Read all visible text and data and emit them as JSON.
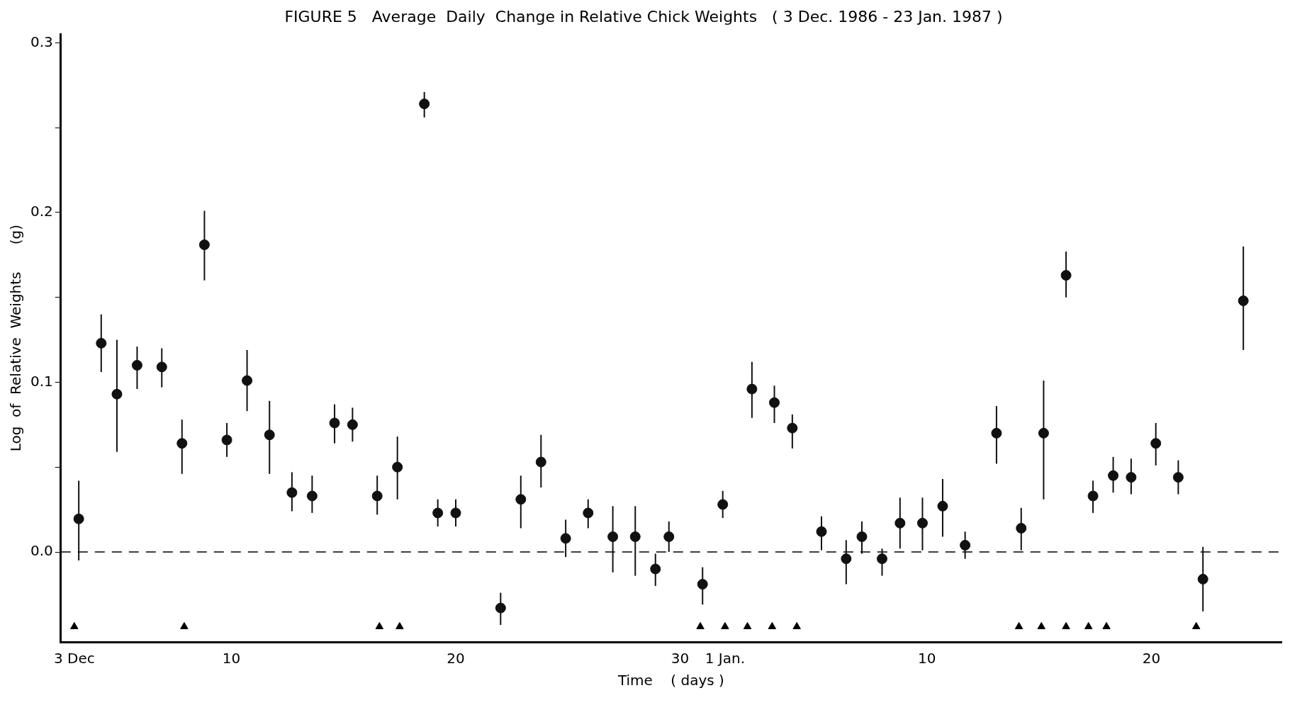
{
  "chart_data": {
    "type": "scatter",
    "title": "FIGURE 5   Average  Daily  Change in Relative Chick Weights   ( 3 Dec. 1986 - 23 Jan. 1987 )",
    "xlabel": "Time    ( days )",
    "ylabel": "Log  of  Relative  Weights      (g)",
    "xlim": [
      "1986-12-02T09:36",
      "1987-01-25T19:12"
    ],
    "xticks": [
      {
        "value": "1986-12-03",
        "label": "3 Dec"
      },
      {
        "value": "1986-12-10",
        "label": "10"
      },
      {
        "value": "1986-12-20",
        "label": "20"
      },
      {
        "value": "1986-12-30",
        "label": "30"
      },
      {
        "value": "1987-01-01",
        "label": "1 Jan."
      },
      {
        "value": "1987-01-10",
        "label": "10"
      },
      {
        "value": "1987-01-20",
        "label": "20"
      }
    ],
    "ylim": [
      -0.053,
      0.305
    ],
    "yticks": [
      {
        "value": 0,
        "label": "0.0"
      },
      {
        "value": 0.05,
        "label": null
      },
      0.1,
      {
        "value": 0.15,
        "label": null
      },
      0.2,
      {
        "value": 0.25,
        "label": null
      },
      0.3
    ],
    "grid": false,
    "legend": false,
    "marker": "circle",
    "ref_lines": [
      {
        "axis": "y",
        "value": 0,
        "line_style": "dashed",
        "color": "#000000"
      }
    ],
    "series": [
      {
        "color": "#111111",
        "x": [
          "1986-12-03T04:48",
          "1986-12-04T04:48",
          "1986-12-04T21:36",
          "1986-12-05T19:12",
          "1986-12-06T21:36",
          "1986-12-07T19:12",
          "1986-12-08T19:12",
          "1986-12-09T19:12",
          "1986-12-10T16:48",
          "1986-12-11T16:48",
          "1986-12-12T16:48",
          "1986-12-13T14:24",
          "1986-12-14T14:24",
          "1986-12-15T09:36",
          "1986-12-16T12:00",
          "1986-12-17T09:36",
          "1986-12-18T14:24",
          "1986-12-19T04:48",
          "1986-12-20T00:00",
          "1986-12-22T00:00",
          "1986-12-22T21:36",
          "1986-12-23T19:12",
          "1986-12-24T21:36",
          "1986-12-25T21:36",
          "1986-12-27T00:00",
          "1986-12-28T00:00",
          "1986-12-28T21:36",
          "1986-12-29T12:00",
          "1986-12-31T00:00",
          "1986-12-31T21:36",
          "1987-01-02T04:48",
          "1987-01-03T04:48",
          "1987-01-04T00:00",
          "1987-01-05T07:12",
          "1987-01-06T09:36",
          "1987-01-07T02:24",
          "1987-01-08T00:00",
          "1987-01-08T19:12",
          "1987-01-09T19:12",
          "1987-01-10T16:48",
          "1987-01-11T16:48",
          "1987-01-13T02:24",
          "1987-01-14T04:48",
          "1987-01-15T04:48",
          "1987-01-16T04:48",
          "1987-01-17T09:36",
          "1987-01-18T07:12",
          "1987-01-19T02:24",
          "1987-01-20T04:48",
          "1987-01-21T04:48",
          "1987-01-22T07:12",
          "1987-01-24T02:24"
        ],
        "values": [
          0.0195,
          0.123,
          0.093,
          0.11,
          0.109,
          0.064,
          0.181,
          0.066,
          0.101,
          0.069,
          0.035,
          0.033,
          0.076,
          0.075,
          0.033,
          0.05,
          0.264,
          0.023,
          0.023,
          -0.033,
          0.031,
          0.053,
          0.008,
          0.023,
          0.009,
          0.009,
          -0.01,
          0.009,
          -0.019,
          0.028,
          0.096,
          0.088,
          0.073,
          0.012,
          -0.004,
          0.009,
          -0.004,
          0.017,
          0.017,
          0.027,
          0.004,
          0.07,
          0.014,
          0.07,
          0.163,
          0.033,
          0.045,
          0.044,
          0.064,
          0.044,
          -0.016,
          0.148
        ],
        "errors": [
          [
            -0.005,
            0.042
          ],
          [
            0.106,
            0.14
          ],
          [
            0.059,
            0.125
          ],
          [
            0.096,
            0.121
          ],
          [
            0.097,
            0.12
          ],
          [
            0.046,
            0.078
          ],
          [
            0.16,
            0.201
          ],
          [
            0.056,
            0.076
          ],
          [
            0.083,
            0.119
          ],
          [
            0.046,
            0.089
          ],
          [
            0.024,
            0.047
          ],
          [
            0.023,
            0.045
          ],
          [
            0.064,
            0.087
          ],
          [
            0.065,
            0.085
          ],
          [
            0.022,
            0.045
          ],
          [
            0.031,
            0.068
          ],
          [
            0.256,
            0.271
          ],
          [
            0.015,
            0.031
          ],
          [
            0.015,
            0.031
          ],
          [
            -0.043,
            -0.024
          ],
          [
            0.014,
            0.045
          ],
          [
            0.038,
            0.069
          ],
          [
            -0.003,
            0.019
          ],
          [
            0.014,
            0.031
          ],
          [
            -0.012,
            0.027
          ],
          [
            -0.014,
            0.027
          ],
          [
            -0.02,
            -0.001
          ],
          [
            0.0,
            0.018
          ],
          [
            -0.031,
            -0.009
          ],
          [
            0.02,
            0.036
          ],
          [
            0.079,
            0.112
          ],
          [
            0.076,
            0.098
          ],
          [
            0.061,
            0.081
          ],
          [
            0.001,
            0.021
          ],
          [
            -0.019,
            0.007
          ],
          [
            -0.001,
            0.018
          ],
          [
            -0.014,
            0.002
          ],
          [
            0.002,
            0.032
          ],
          [
            0.001,
            0.032
          ],
          [
            0.009,
            0.043
          ],
          [
            -0.004,
            0.012
          ],
          [
            0.052,
            0.086
          ],
          [
            0.001,
            0.026
          ],
          [
            0.031,
            0.101
          ],
          [
            0.15,
            0.177
          ],
          [
            0.023,
            0.042
          ],
          [
            0.035,
            0.056
          ],
          [
            0.034,
            0.055
          ],
          [
            0.051,
            0.076
          ],
          [
            0.034,
            0.054
          ],
          [
            -0.035,
            0.003
          ],
          [
            0.119,
            0.18
          ]
        ]
      },
      {
        "color": "#000000",
        "marker": "triangle",
        "x": [
          "1986-12-03T00:00",
          "1986-12-07T21:36",
          "1986-12-16T14:24",
          "1986-12-17T12:00",
          "1986-12-30T21:36",
          "1987-01-01T00:00",
          "1987-01-02T00:00",
          "1987-01-03T02:24",
          "1987-01-04T04:48",
          "1987-01-14T02:24",
          "1987-01-15T02:24",
          "1987-01-16T04:48",
          "1987-01-17T04:48",
          "1987-01-18T00:00",
          "1987-01-22T00:00"
        ],
        "values": [
          -0.044,
          -0.044,
          -0.044,
          -0.044,
          -0.044,
          -0.044,
          -0.044,
          -0.044,
          -0.044,
          -0.044,
          -0.044,
          -0.044,
          -0.044,
          -0.044,
          -0.044
        ]
      }
    ]
  }
}
